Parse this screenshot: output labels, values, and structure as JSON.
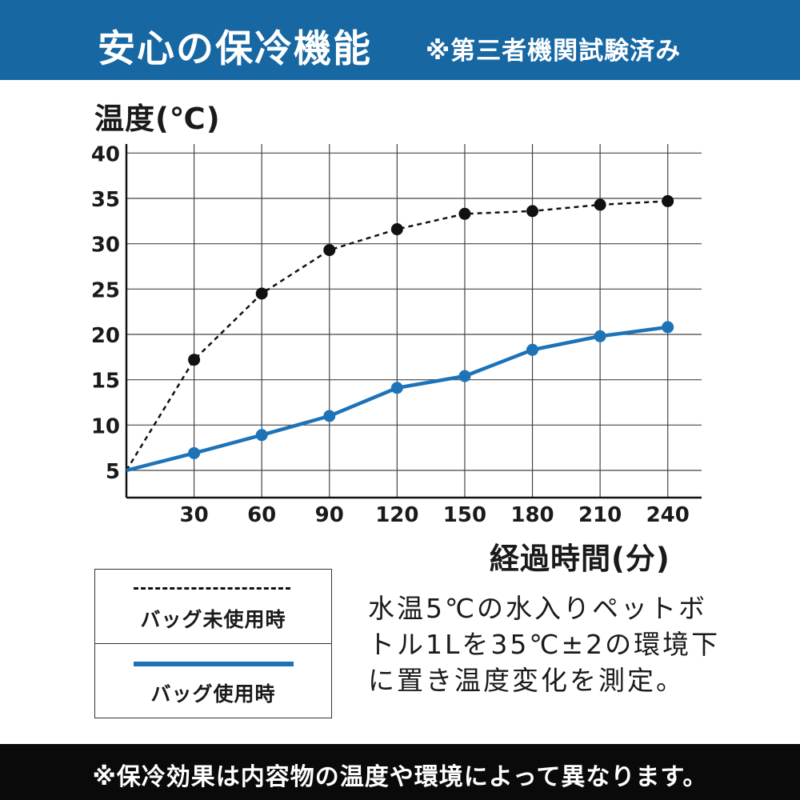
{
  "header": {
    "title": "安心の保冷機能",
    "subtitle": "※第三者機関試験済み",
    "bg_color": "#1767a3"
  },
  "legend": {
    "items": [
      {
        "label": "バッグ未使用時",
        "style": "dashed",
        "color": "#111111"
      },
      {
        "label": "バッグ使用時",
        "style": "solid",
        "color": "#1d73b8"
      }
    ]
  },
  "note": {
    "lines": [
      "水温5℃の水入りペットボ",
      "トル1Lを35℃±2の環境下",
      "に置き温度変化を測定。"
    ]
  },
  "footer": {
    "text": "※保冷効果は内容物の温度や環境によって異なります。"
  },
  "chart_data": {
    "type": "line",
    "title": "",
    "xlabel": "経過時間(分)",
    "ylabel": "温度(℃)",
    "x": [
      0,
      30,
      60,
      90,
      120,
      150,
      180,
      210,
      240
    ],
    "xticks": [
      30,
      60,
      90,
      120,
      150,
      180,
      210,
      240
    ],
    "yticks": [
      5,
      10,
      15,
      20,
      25,
      30,
      35,
      40
    ],
    "xlim": [
      0,
      255
    ],
    "ylim": [
      2,
      41
    ],
    "grid": true,
    "series": [
      {
        "name": "バッグ未使用時",
        "style": "dashed",
        "color": "#111111",
        "values": [
          5.0,
          17.2,
          24.5,
          29.3,
          31.6,
          33.3,
          33.6,
          34.3,
          34.7
        ]
      },
      {
        "name": "バッグ使用時",
        "style": "solid",
        "color": "#1d73b8",
        "values": [
          5.0,
          6.9,
          8.9,
          11.0,
          14.1,
          15.4,
          18.3,
          19.8,
          20.8
        ]
      }
    ]
  }
}
